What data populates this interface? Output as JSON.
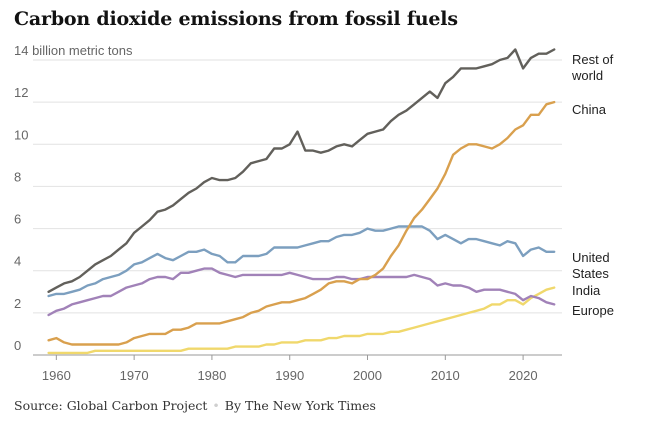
{
  "title": "Carbon dioxide emissions from fossil fuels",
  "source": {
    "text": "Source: Global Carbon Project",
    "byline": "By The New York Times"
  },
  "chart_data": {
    "type": "line",
    "title": "Carbon dioxide emissions from fossil fuels",
    "ylabel": "billion metric tons",
    "y_unit_label": "14 billion metric tons",
    "xlim": [
      1957,
      2025
    ],
    "ylim": [
      0,
      14
    ],
    "x_ticks": [
      1960,
      1970,
      1980,
      1990,
      2000,
      2010,
      2020
    ],
    "y_ticks": [
      0,
      2,
      4,
      6,
      8,
      10,
      12,
      14
    ],
    "grid": "horizontal",
    "series": [
      {
        "name": "Rest of world",
        "label_lines": [
          "Rest of",
          "world"
        ],
        "color": "#62605b",
        "x": [
          1959,
          1960,
          1961,
          1962,
          1963,
          1964,
          1965,
          1966,
          1967,
          1968,
          1969,
          1970,
          1971,
          1972,
          1973,
          1974,
          1975,
          1976,
          1977,
          1978,
          1979,
          1980,
          1981,
          1982,
          1983,
          1984,
          1985,
          1986,
          1987,
          1988,
          1989,
          1990,
          1991,
          1992,
          1993,
          1994,
          1995,
          1996,
          1997,
          1998,
          1999,
          2000,
          2001,
          2002,
          2003,
          2004,
          2005,
          2006,
          2007,
          2008,
          2009,
          2010,
          2011,
          2012,
          2013,
          2014,
          2015,
          2016,
          2017,
          2018,
          2019,
          2020,
          2021,
          2022,
          2023,
          2024
        ],
        "values": [
          3.0,
          3.2,
          3.4,
          3.5,
          3.7,
          4.0,
          4.3,
          4.5,
          4.7,
          5.0,
          5.3,
          5.8,
          6.1,
          6.4,
          6.8,
          6.9,
          7.1,
          7.4,
          7.7,
          7.9,
          8.2,
          8.4,
          8.3,
          8.3,
          8.4,
          8.7,
          9.1,
          9.2,
          9.3,
          9.8,
          9.8,
          10.0,
          10.6,
          9.7,
          9.7,
          9.6,
          9.7,
          9.9,
          10.0,
          9.9,
          10.2,
          10.5,
          10.6,
          10.7,
          11.1,
          11.4,
          11.6,
          11.9,
          12.2,
          12.5,
          12.2,
          12.9,
          13.2,
          13.6,
          13.6,
          13.6,
          13.7,
          13.8,
          14.0,
          14.1,
          14.5,
          13.6,
          14.1,
          14.3,
          14.3,
          14.5
        ]
      },
      {
        "name": "China",
        "label_lines": [
          "China"
        ],
        "color": "#d9a04e",
        "x": [
          1959,
          1960,
          1961,
          1962,
          1963,
          1964,
          1965,
          1966,
          1967,
          1968,
          1969,
          1970,
          1971,
          1972,
          1973,
          1974,
          1975,
          1976,
          1977,
          1978,
          1979,
          1980,
          1981,
          1982,
          1983,
          1984,
          1985,
          1986,
          1987,
          1988,
          1989,
          1990,
          1991,
          1992,
          1993,
          1994,
          1995,
          1996,
          1997,
          1998,
          1999,
          2000,
          2001,
          2002,
          2003,
          2004,
          2005,
          2006,
          2007,
          2008,
          2009,
          2010,
          2011,
          2012,
          2013,
          2014,
          2015,
          2016,
          2017,
          2018,
          2019,
          2020,
          2021,
          2022,
          2023,
          2024
        ],
        "values": [
          0.7,
          0.8,
          0.6,
          0.5,
          0.5,
          0.5,
          0.5,
          0.5,
          0.5,
          0.5,
          0.6,
          0.8,
          0.9,
          1.0,
          1.0,
          1.0,
          1.2,
          1.2,
          1.3,
          1.5,
          1.5,
          1.5,
          1.5,
          1.6,
          1.7,
          1.8,
          2.0,
          2.1,
          2.3,
          2.4,
          2.5,
          2.5,
          2.6,
          2.7,
          2.9,
          3.1,
          3.4,
          3.5,
          3.5,
          3.4,
          3.6,
          3.6,
          3.8,
          4.1,
          4.7,
          5.2,
          5.9,
          6.5,
          6.9,
          7.4,
          7.9,
          8.6,
          9.5,
          9.8,
          10.0,
          10.0,
          9.9,
          9.8,
          10.0,
          10.3,
          10.7,
          10.9,
          11.4,
          11.4,
          11.9,
          12.0
        ]
      },
      {
        "name": "United States",
        "label_lines": [
          "United",
          "States"
        ],
        "color": "#7c9fbf",
        "x": [
          1959,
          1960,
          1961,
          1962,
          1963,
          1964,
          1965,
          1966,
          1967,
          1968,
          1969,
          1970,
          1971,
          1972,
          1973,
          1974,
          1975,
          1976,
          1977,
          1978,
          1979,
          1980,
          1981,
          1982,
          1983,
          1984,
          1985,
          1986,
          1987,
          1988,
          1989,
          1990,
          1991,
          1992,
          1993,
          1994,
          1995,
          1996,
          1997,
          1998,
          1999,
          2000,
          2001,
          2002,
          2003,
          2004,
          2005,
          2006,
          2007,
          2008,
          2009,
          2010,
          2011,
          2012,
          2013,
          2014,
          2015,
          2016,
          2017,
          2018,
          2019,
          2020,
          2021,
          2022,
          2023,
          2024
        ],
        "values": [
          2.8,
          2.9,
          2.9,
          3.0,
          3.1,
          3.3,
          3.4,
          3.6,
          3.7,
          3.8,
          4.0,
          4.3,
          4.4,
          4.6,
          4.8,
          4.6,
          4.5,
          4.7,
          4.9,
          4.9,
          5.0,
          4.8,
          4.7,
          4.4,
          4.4,
          4.7,
          4.7,
          4.7,
          4.8,
          5.1,
          5.1,
          5.1,
          5.1,
          5.2,
          5.3,
          5.4,
          5.4,
          5.6,
          5.7,
          5.7,
          5.8,
          6.0,
          5.9,
          5.9,
          6.0,
          6.1,
          6.1,
          6.1,
          6.1,
          5.9,
          5.5,
          5.7,
          5.5,
          5.3,
          5.5,
          5.5,
          5.4,
          5.3,
          5.2,
          5.4,
          5.3,
          4.7,
          5.0,
          5.1,
          4.9,
          4.9
        ]
      },
      {
        "name": "India",
        "label_lines": [
          "India"
        ],
        "color": "#f0d86c",
        "x": [
          1959,
          1960,
          1961,
          1962,
          1963,
          1964,
          1965,
          1966,
          1967,
          1968,
          1969,
          1970,
          1971,
          1972,
          1973,
          1974,
          1975,
          1976,
          1977,
          1978,
          1979,
          1980,
          1981,
          1982,
          1983,
          1984,
          1985,
          1986,
          1987,
          1988,
          1989,
          1990,
          1991,
          1992,
          1993,
          1994,
          1995,
          1996,
          1997,
          1998,
          1999,
          2000,
          2001,
          2002,
          2003,
          2004,
          2005,
          2006,
          2007,
          2008,
          2009,
          2010,
          2011,
          2012,
          2013,
          2014,
          2015,
          2016,
          2017,
          2018,
          2019,
          2020,
          2021,
          2022,
          2023,
          2024
        ],
        "values": [
          0.1,
          0.1,
          0.1,
          0.1,
          0.1,
          0.1,
          0.2,
          0.2,
          0.2,
          0.2,
          0.2,
          0.2,
          0.2,
          0.2,
          0.2,
          0.2,
          0.2,
          0.2,
          0.3,
          0.3,
          0.3,
          0.3,
          0.3,
          0.3,
          0.4,
          0.4,
          0.4,
          0.4,
          0.5,
          0.5,
          0.6,
          0.6,
          0.6,
          0.7,
          0.7,
          0.7,
          0.8,
          0.8,
          0.9,
          0.9,
          0.9,
          1.0,
          1.0,
          1.0,
          1.1,
          1.1,
          1.2,
          1.3,
          1.4,
          1.5,
          1.6,
          1.7,
          1.8,
          1.9,
          2.0,
          2.1,
          2.2,
          2.4,
          2.4,
          2.6,
          2.6,
          2.4,
          2.7,
          2.9,
          3.1,
          3.2
        ]
      },
      {
        "name": "Europe",
        "label_lines": [
          "Europe"
        ],
        "color": "#a182b8",
        "x": [
          1959,
          1960,
          1961,
          1962,
          1963,
          1964,
          1965,
          1966,
          1967,
          1968,
          1969,
          1970,
          1971,
          1972,
          1973,
          1974,
          1975,
          1976,
          1977,
          1978,
          1979,
          1980,
          1981,
          1982,
          1983,
          1984,
          1985,
          1986,
          1987,
          1988,
          1989,
          1990,
          1991,
          1992,
          1993,
          1994,
          1995,
          1996,
          1997,
          1998,
          1999,
          2000,
          2001,
          2002,
          2003,
          2004,
          2005,
          2006,
          2007,
          2008,
          2009,
          2010,
          2011,
          2012,
          2013,
          2014,
          2015,
          2016,
          2017,
          2018,
          2019,
          2020,
          2021,
          2022,
          2023,
          2024
        ],
        "values": [
          1.9,
          2.1,
          2.2,
          2.4,
          2.5,
          2.6,
          2.7,
          2.8,
          2.8,
          3.0,
          3.2,
          3.3,
          3.4,
          3.6,
          3.7,
          3.7,
          3.6,
          3.9,
          3.9,
          4.0,
          4.1,
          4.1,
          3.9,
          3.8,
          3.7,
          3.8,
          3.8,
          3.8,
          3.8,
          3.8,
          3.8,
          3.9,
          3.8,
          3.7,
          3.6,
          3.6,
          3.6,
          3.7,
          3.7,
          3.6,
          3.6,
          3.7,
          3.7,
          3.7,
          3.7,
          3.7,
          3.7,
          3.8,
          3.7,
          3.6,
          3.3,
          3.4,
          3.3,
          3.3,
          3.2,
          3.0,
          3.1,
          3.1,
          3.1,
          3.0,
          2.9,
          2.6,
          2.8,
          2.7,
          2.5,
          2.4
        ]
      }
    ]
  }
}
